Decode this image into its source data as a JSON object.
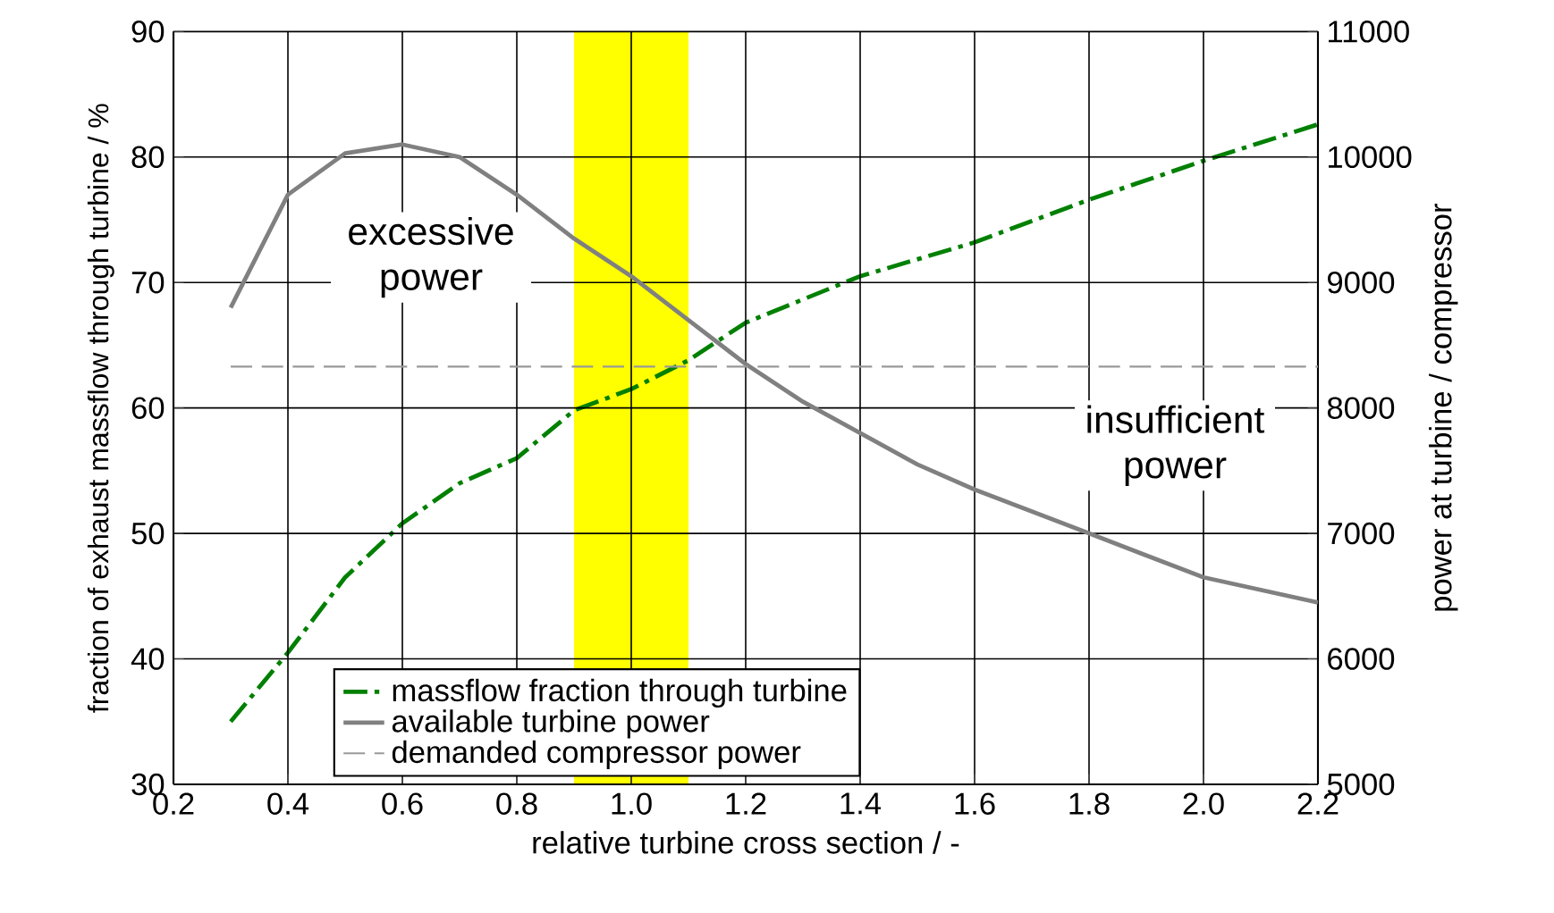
{
  "chart_data": {
    "type": "line",
    "xlabel": "relative turbine cross section / -",
    "ylabel": "fraction of exhaust massflow through turbine / %",
    "y2label": "power at turbine / compressor",
    "xlim": [
      0.2,
      2.2
    ],
    "xticks": [
      0.2,
      0.4,
      0.6,
      0.8,
      {
        "value": 1,
        "label": "1.0"
      },
      1.2,
      1.4,
      1.6,
      1.8,
      {
        "value": 2,
        "label": "2.0"
      },
      2.2
    ],
    "ylim": [
      30,
      90
    ],
    "yticks": [
      30,
      40,
      50,
      60,
      70,
      80,
      90
    ],
    "y2lim": [
      5000,
      11000
    ],
    "y2ticks": [
      5000,
      6000,
      7000,
      8000,
      9000,
      10000,
      11000
    ],
    "grid": true,
    "legend": "bottom",
    "series": [
      {
        "name": "massflow fraction through turbine",
        "color": "#008000",
        "line_style": "dashdot",
        "x": [
          0.3,
          0.4,
          0.5,
          0.6,
          0.7,
          0.8,
          0.9,
          1.0,
          1.1,
          1.2,
          1.4,
          1.6,
          1.8,
          2.0,
          2.2
        ],
        "values": [
          35,
          40.5,
          46.5,
          50.8,
          54,
          56,
          59.8,
          61.5,
          63.8,
          66.8,
          70.5,
          73.2,
          76.6,
          79.7,
          82.6
        ]
      },
      {
        "name": "available turbine power",
        "color": "#808080",
        "axis": "y2",
        "line_style": "solid",
        "x": [
          0.3,
          0.4,
          0.5,
          0.6,
          0.7,
          0.8,
          0.9,
          1.0,
          1.1,
          1.2,
          1.3,
          1.4,
          1.5,
          1.6,
          1.8,
          2.0,
          2.2
        ],
        "values": [
          8800,
          9700,
          10030,
          10100,
          10000,
          9700,
          9350,
          9050,
          8700,
          8350,
          8050,
          7800,
          7550,
          7350,
          7000,
          6650,
          6450
        ]
      },
      {
        "name": "demanded compressor power",
        "color": "#999999",
        "axis": "y2",
        "line_style": "dashed",
        "x": [
          0.3,
          2.2
        ],
        "values": [
          8330,
          8330
        ]
      }
    ],
    "bands": [
      {
        "axis": "x",
        "from": 0.9,
        "to": 1.1,
        "color": "#ffff00"
      }
    ],
    "annotations": [
      "excessive power",
      "insufficient power"
    ]
  }
}
